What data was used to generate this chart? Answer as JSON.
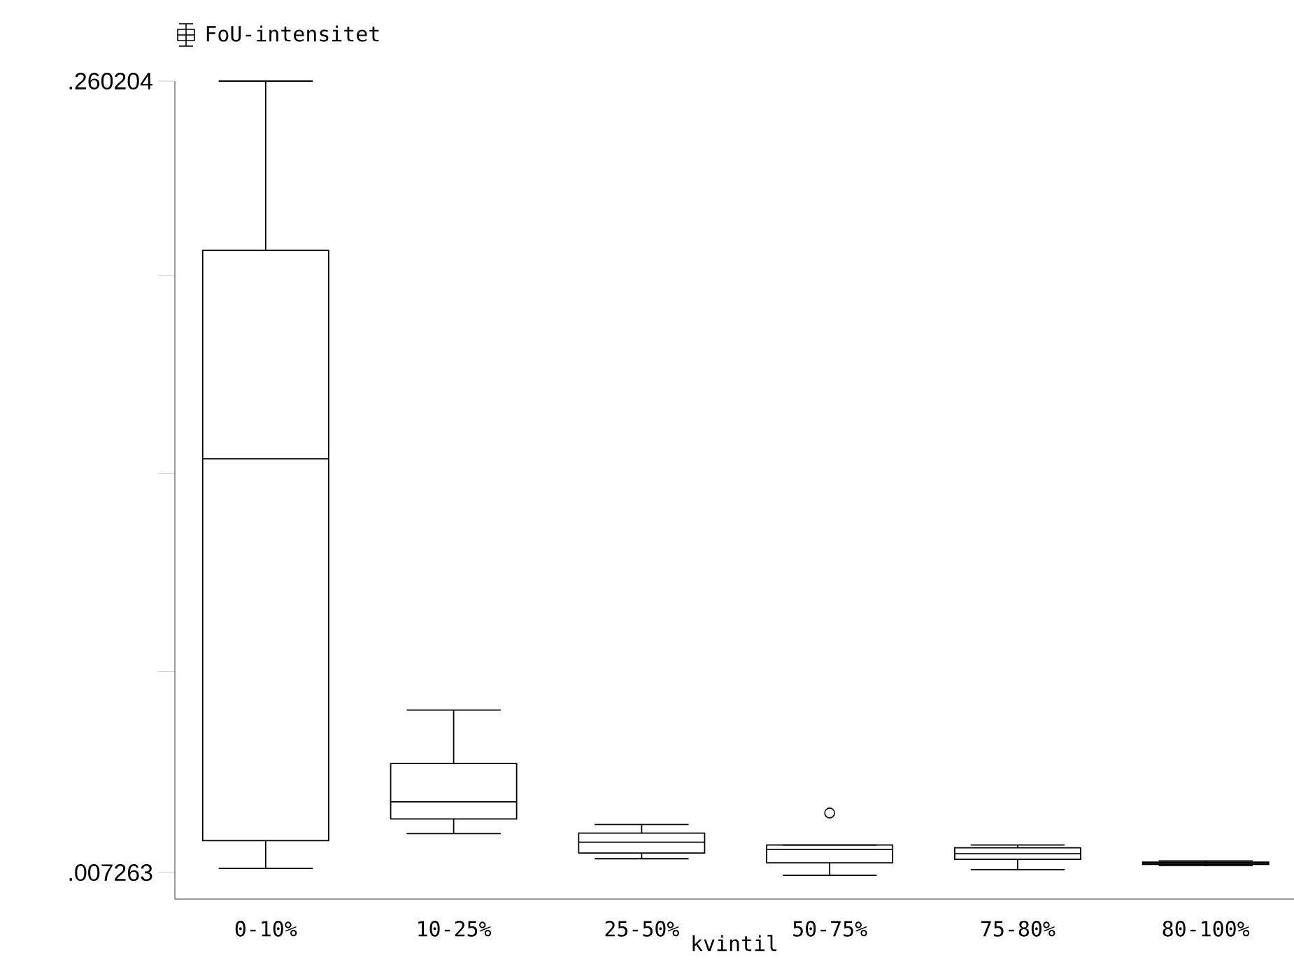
{
  "chart_data": {
    "type": "box",
    "xlabel": "kvintil",
    "legend": "top left",
    "categories": [
      "0-10%",
      "10-25%",
      "25-50%",
      "50-75%",
      "75-80%",
      "80-100%"
    ],
    "ylim": [
      -0.0012,
      0.260204
    ],
    "yticks": [
      {
        "value": 0.007263,
        "label": ".007263"
      },
      {
        "value": 0.071498,
        "label": null
      },
      {
        "value": 0.134734,
        "label": null
      },
      {
        "value": 0.197969,
        "label": null
      },
      {
        "value": 0.260204,
        "label": ".260204"
      }
    ],
    "series": [
      {
        "name": "FoU-intensitet",
        "color": "#000000",
        "boxes": [
          {
            "low": 0.0086,
            "q1": 0.0175,
            "median": 0.1395,
            "q3": 0.2061,
            "high": 0.2602
          },
          {
            "low": 0.0197,
            "q1": 0.0244,
            "median": 0.0299,
            "q3": 0.0421,
            "high": 0.0592
          },
          {
            "low": 0.0117,
            "q1": 0.0135,
            "median": 0.017,
            "q3": 0.0199,
            "high": 0.0226
          },
          {
            "low": 0.0064,
            "q1": 0.0104,
            "median": 0.0147,
            "q3": 0.0161,
            "high": 0.0161,
            "outliers": [
              0.0263
            ]
          },
          {
            "low": 0.0082,
            "q1": 0.0115,
            "median": 0.0133,
            "q3": 0.0152,
            "high": 0.0161
          },
          {
            "low": 0.0095,
            "q1": 0.0099,
            "median": 0.0102,
            "q3": 0.0106,
            "high": 0.011
          }
        ]
      }
    ]
  }
}
